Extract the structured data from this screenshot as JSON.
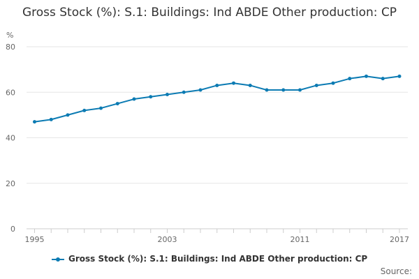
{
  "chart_data": {
    "type": "line",
    "title": "Gross Stock (%): S.1: Buildings: Ind ABDE Other production: CP",
    "ylabel": "%",
    "xlabel": "",
    "ylim": [
      0,
      80
    ],
    "yticks": [
      0,
      20,
      40,
      60,
      80
    ],
    "xlim": [
      1995,
      2017
    ],
    "xtick_labels": [
      "1995",
      "2003",
      "2011",
      "2017"
    ],
    "grid": true,
    "legend_position": "bottom",
    "colors": {
      "series": "#0c7bb3",
      "grid": "#e6e6e6",
      "axis": "#cccccc",
      "text": "#666666"
    },
    "x": [
      1995,
      1996,
      1997,
      1998,
      1999,
      2000,
      2001,
      2002,
      2003,
      2004,
      2005,
      2006,
      2007,
      2008,
      2009,
      2010,
      2011,
      2012,
      2013,
      2014,
      2015,
      2016,
      2017
    ],
    "series": [
      {
        "name": "Gross Stock (%): S.1: Buildings: Ind ABDE Other production: CP",
        "values": [
          47,
          48,
          50,
          52,
          53,
          55,
          57,
          58,
          59,
          60,
          61,
          63,
          64,
          63,
          61,
          61,
          61,
          63,
          64,
          66,
          67,
          66,
          67
        ]
      }
    ]
  },
  "source_label": "Source:"
}
